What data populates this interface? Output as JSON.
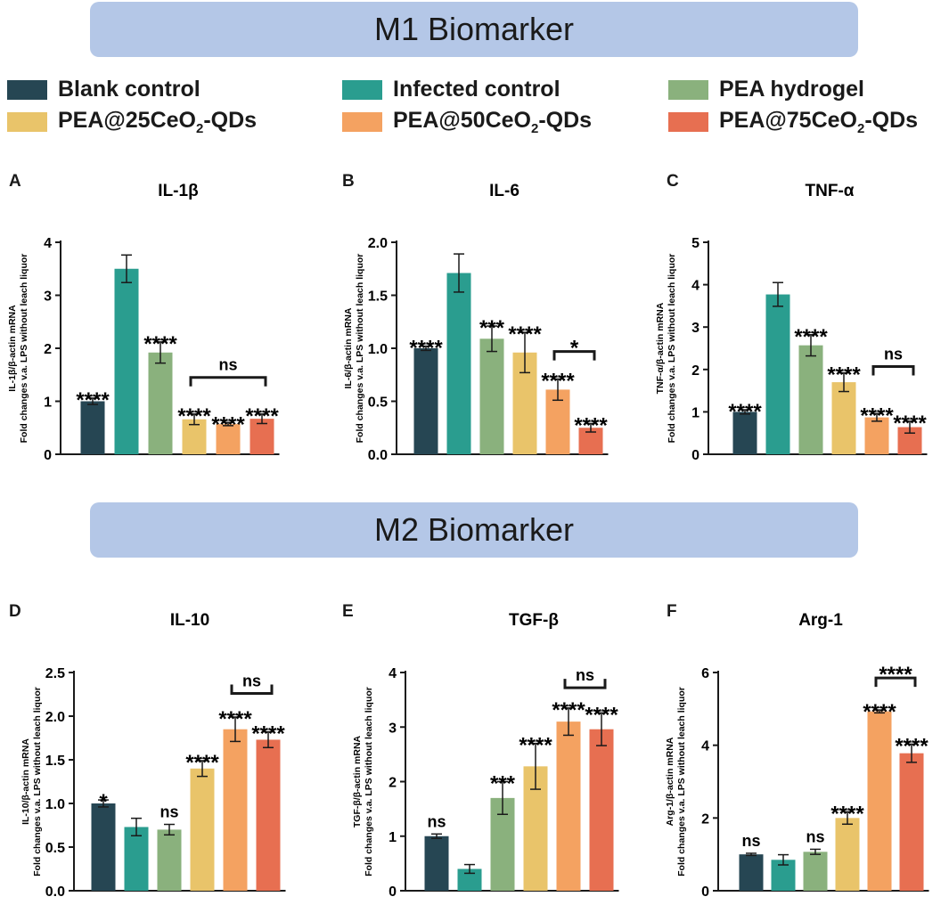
{
  "banners": {
    "m1": "M1 Biomarker",
    "m2": "M2 Biomarker"
  },
  "legend": [
    {
      "label": "Blank control",
      "sub": "",
      "suffix": "",
      "color": "#264653"
    },
    {
      "label": "Infected control",
      "sub": "",
      "suffix": "",
      "color": "#2a9d8f"
    },
    {
      "label": "PEA hydrogel",
      "sub": "",
      "suffix": "",
      "color": "#8ab17d"
    },
    {
      "label": "PEA@25CeO",
      "sub": "2",
      "suffix": "-QDs",
      "color": "#e9c46a"
    },
    {
      "label": "PEA@50CeO",
      "sub": "2",
      "suffix": "-QDs",
      "color": "#f4a261"
    },
    {
      "label": "PEA@75CeO",
      "sub": "2",
      "suffix": "-QDs",
      "color": "#e76f51"
    }
  ],
  "chart_data": [
    {
      "panel": "A",
      "type": "bar",
      "title": "IL-1β",
      "ylabel_line1": "IL-1β/β-actin mRNA",
      "ylabel_line2": "Fold changes v.a. LPS without leach liquor",
      "ylim": [
        0,
        4
      ],
      "yticks": [
        "0",
        "1",
        "2",
        "3",
        "4"
      ],
      "ytick_values": [
        0,
        1,
        2,
        3,
        4
      ],
      "categories": [
        "Blank control",
        "Infected control",
        "PEA hydrogel",
        "PEA@25CeO2-QDs",
        "PEA@50CeO2-QDs",
        "PEA@75CeO2-QDs"
      ],
      "values": [
        1.0,
        3.5,
        1.92,
        0.66,
        0.57,
        0.67
      ],
      "errors": [
        0.06,
        0.26,
        0.2,
        0.1,
        0.03,
        0.09
      ],
      "labels": [
        "****",
        "",
        "****",
        "****",
        "****",
        "****"
      ],
      "brackets": [
        {
          "from": 3,
          "to": 5,
          "y": 1.45,
          "label": "ns",
          "ticks": "down"
        }
      ]
    },
    {
      "panel": "B",
      "type": "bar",
      "title": "IL-6",
      "ylabel_line1": "IL-6/β-actin mRNA",
      "ylabel_line2": "Fold changes v.a. LPS without leach liquor",
      "ylim": [
        0,
        2.0
      ],
      "yticks": [
        "0.0",
        "0.5",
        "1.0",
        "1.5",
        "2.0"
      ],
      "ytick_values": [
        0,
        0.5,
        1.0,
        1.5,
        2.0
      ],
      "categories": [
        "Blank control",
        "Infected control",
        "PEA hydrogel",
        "PEA@25CeO2-QDs",
        "PEA@50CeO2-QDs",
        "PEA@75CeO2-QDs"
      ],
      "values": [
        1.0,
        1.71,
        1.09,
        0.96,
        0.61,
        0.25
      ],
      "errors": [
        0.02,
        0.18,
        0.12,
        0.19,
        0.1,
        0.04
      ],
      "labels": [
        "****",
        "",
        "***",
        "****",
        "****",
        "****"
      ],
      "brackets": [
        {
          "from": 4,
          "to": 5,
          "y": 0.97,
          "label": "*",
          "ticks": "down"
        }
      ]
    },
    {
      "panel": "C",
      "type": "bar",
      "title": "TNF-α",
      "ylabel_line1": "TNF-α/β-actin mRNA",
      "ylabel_line2": "Fold changes v.a. LPS without leach liquor",
      "ylim": [
        0,
        5
      ],
      "yticks": [
        "0",
        "1",
        "2",
        "3",
        "4",
        "5"
      ],
      "ytick_values": [
        0,
        1,
        2,
        3,
        4,
        5
      ],
      "categories": [
        "Blank control",
        "Infected control",
        "PEA hydrogel",
        "PEA@25CeO2-QDs",
        "PEA@50CeO2-QDs",
        "PEA@75CeO2-QDs"
      ],
      "values": [
        1.0,
        3.77,
        2.57,
        1.7,
        0.87,
        0.64
      ],
      "errors": [
        0.05,
        0.28,
        0.25,
        0.22,
        0.09,
        0.14
      ],
      "labels": [
        "****",
        "",
        "****",
        "****",
        "****",
        "****"
      ],
      "brackets": [
        {
          "from": 4,
          "to": 5,
          "y": 2.07,
          "label": "ns",
          "ticks": "down"
        }
      ]
    },
    {
      "panel": "D",
      "type": "bar",
      "title": "IL-10",
      "ylabel_line1": "IL-10/β-actin mRNA",
      "ylabel_line2": "Fold changes v.a. LPS without leach liquor",
      "ylim": [
        0,
        2.5
      ],
      "yticks": [
        "0.0",
        "0.5",
        "1.0",
        "1.5",
        "2.0",
        "2.5"
      ],
      "ytick_values": [
        0,
        0.5,
        1.0,
        1.5,
        2.0,
        2.5
      ],
      "categories": [
        "Blank control",
        "Infected control",
        "PEA hydrogel",
        "PEA@25CeO2-QDs",
        "PEA@50CeO2-QDs",
        "PEA@75CeO2-QDs"
      ],
      "values": [
        1.0,
        0.73,
        0.7,
        1.4,
        1.85,
        1.73
      ],
      "errors": [
        0.04,
        0.1,
        0.06,
        0.09,
        0.14,
        0.09
      ],
      "labels": [
        "*",
        "",
        "ns",
        "****",
        "****",
        "****"
      ],
      "brackets": [
        {
          "from": 4,
          "to": 5,
          "y": 2.26,
          "label": "ns",
          "ticks": "up"
        }
      ]
    },
    {
      "panel": "E",
      "type": "bar",
      "title": "TGF-β",
      "ylabel_line1": "TGF-β/β-actin mRNA",
      "ylabel_line2": "Fold changes v.a. LPS without leach liquor",
      "ylim": [
        0,
        4
      ],
      "yticks": [
        "0",
        "1",
        "2",
        "3",
        "4"
      ],
      "ytick_values": [
        0,
        1,
        2,
        3,
        4
      ],
      "categories": [
        "Blank control",
        "Infected control",
        "PEA hydrogel",
        "PEA@25CeO2-QDs",
        "PEA@50CeO2-QDs",
        "PEA@75CeO2-QDs"
      ],
      "values": [
        1.0,
        0.4,
        1.7,
        2.28,
        3.1,
        2.96
      ],
      "errors": [
        0.04,
        0.08,
        0.3,
        0.42,
        0.25,
        0.3
      ],
      "labels": [
        "ns",
        "",
        "***",
        "****",
        "****",
        "****"
      ],
      "brackets": [
        {
          "from": 4,
          "to": 5,
          "y": 3.72,
          "label": "ns",
          "ticks": "up"
        }
      ]
    },
    {
      "panel": "F",
      "type": "bar",
      "title": "Arg-1",
      "ylabel_line1": "Arg-1/β-actin mRNA",
      "ylabel_line2": "Fold changes v.a. LPS without leach liquor",
      "ylim": [
        0,
        6
      ],
      "yticks": [
        "0",
        "2",
        "4",
        "6"
      ],
      "ytick_values": [
        0,
        2,
        4,
        6
      ],
      "categories": [
        "Blank control",
        "Infected control",
        "PEA hydrogel",
        "PEA@25CeO2-QDs",
        "PEA@50CeO2-QDs",
        "PEA@75CeO2-QDs"
      ],
      "values": [
        1.0,
        0.85,
        1.07,
        2.0,
        4.93,
        3.78
      ],
      "errors": [
        0.03,
        0.14,
        0.07,
        0.17,
        0.04,
        0.25
      ],
      "labels": [
        "ns",
        "",
        "ns",
        "****",
        "****",
        "****"
      ],
      "brackets": [
        {
          "from": 4,
          "to": 5,
          "y": 5.85,
          "label": "****",
          "ticks": "down"
        }
      ]
    }
  ]
}
